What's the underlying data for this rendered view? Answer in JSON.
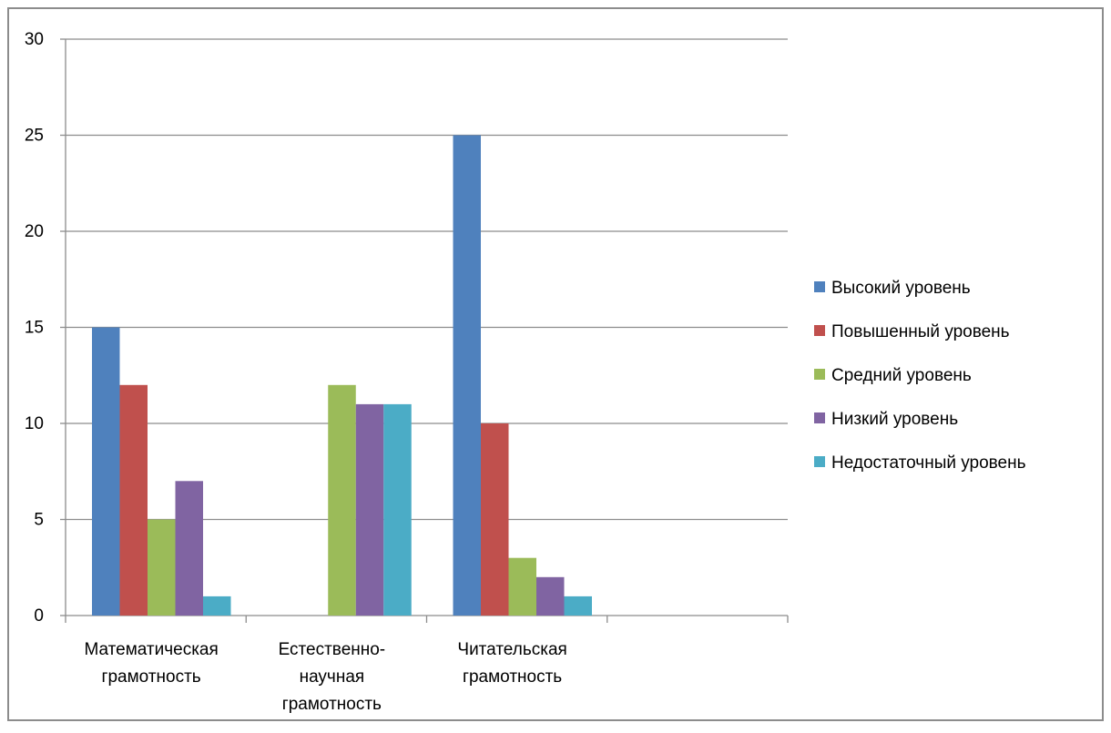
{
  "chart_data": {
    "type": "bar",
    "title": "",
    "xlabel": "",
    "ylabel": "",
    "ylim": [
      0,
      30
    ],
    "yticks": [
      0,
      5,
      10,
      15,
      20,
      25,
      30
    ],
    "grid": true,
    "legend_position": "right",
    "categories": [
      [
        "Математическая",
        "грамотность"
      ],
      [
        "Естественно-",
        "научная",
        "грамотность"
      ],
      [
        "Читательская",
        "грамотность"
      ],
      [
        ""
      ]
    ],
    "series": [
      {
        "name": "Высокий уровень",
        "color": "#4F81BD",
        "values": [
          15,
          0,
          25,
          null
        ]
      },
      {
        "name": "Повышенный уровень",
        "color": "#C0504D",
        "values": [
          12,
          0,
          10,
          null
        ]
      },
      {
        "name": "Средний уровень",
        "color": "#9BBB59",
        "values": [
          5,
          12,
          3,
          null
        ]
      },
      {
        "name": "Низкий уровень",
        "color": "#8064A2",
        "values": [
          7,
          11,
          2,
          null
        ]
      },
      {
        "name": "Недостаточный уровень",
        "color": "#4BACC6",
        "values": [
          1,
          11,
          1,
          null
        ]
      }
    ]
  }
}
